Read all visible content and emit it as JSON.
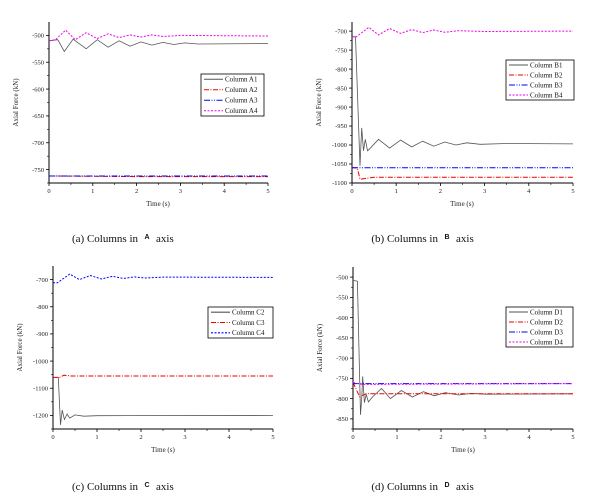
{
  "chart_data": [
    {
      "type": "line",
      "caption": "(a) Columns in",
      "caption_axis_symbol": "A",
      "caption_suffix": "axis",
      "xlabel": "Time (s)",
      "ylabel": "Axial Force (kN)",
      "xlim": [
        0,
        5
      ],
      "ylim": [
        -775,
        -475
      ],
      "xticks": [
        0,
        1,
        2,
        3,
        4,
        5
      ],
      "yticks": [
        -500,
        -550,
        -600,
        -650,
        -700,
        -750
      ],
      "legend_position": "center-right",
      "series": [
        {
          "name": "Column A1",
          "color": "#555555",
          "dash": "solid",
          "points": [
            [
              0,
              -510
            ],
            [
              0.2,
              -508
            ],
            [
              0.35,
              -530
            ],
            [
              0.55,
              -507
            ],
            [
              0.85,
              -525
            ],
            [
              1.1,
              -508
            ],
            [
              1.35,
              -522
            ],
            [
              1.6,
              -510
            ],
            [
              1.85,
              -520
            ],
            [
              2.1,
              -512
            ],
            [
              2.35,
              -518
            ],
            [
              2.6,
              -513
            ],
            [
              2.85,
              -517
            ],
            [
              3.1,
              -514
            ],
            [
              3.4,
              -516
            ],
            [
              5,
              -515
            ]
          ]
        },
        {
          "name": "Column A2",
          "color": "#ee0000",
          "dash": "dashdot",
          "points": [
            [
              0,
              -762
            ],
            [
              2,
              -763
            ],
            [
              5,
              -763
            ]
          ]
        },
        {
          "name": "Column A3",
          "color": "#0000ff",
          "dash": "dashdotdot",
          "points": [
            [
              0,
              -762
            ],
            [
              5,
              -762
            ]
          ]
        },
        {
          "name": "Column A4",
          "color": "#ee00ee",
          "dash": "dash",
          "points": [
            [
              0,
              -510
            ],
            [
              0.15,
              -508
            ],
            [
              0.38,
              -490
            ],
            [
              0.6,
              -508
            ],
            [
              0.85,
              -495
            ],
            [
              1.1,
              -506
            ],
            [
              1.35,
              -497
            ],
            [
              1.6,
              -504
            ],
            [
              1.85,
              -499
            ],
            [
              2.1,
              -503
            ],
            [
              2.35,
              -499
            ],
            [
              2.6,
              -502
            ],
            [
              3,
              -500
            ],
            [
              5,
              -501
            ]
          ]
        }
      ]
    },
    {
      "type": "line",
      "caption": "(b) Columns in",
      "caption_axis_symbol": "B",
      "caption_suffix": "axis",
      "xlabel": "Time (s)",
      "ylabel": "Axial Force (kN)",
      "xlim": [
        0,
        5
      ],
      "ylim": [
        -1100,
        -676
      ],
      "xticks": [
        0,
        1,
        2,
        3,
        4,
        5
      ],
      "yticks": [
        -700,
        -750,
        -800,
        -850,
        -900,
        -950,
        -1000,
        -1050,
        -1100
      ],
      "legend_position": "upper-right",
      "series": [
        {
          "name": "Column B1",
          "color": "#555555",
          "dash": "solid",
          "points": [
            [
              0,
              -715
            ],
            [
              0.08,
              -715
            ],
            [
              0.18,
              -1055
            ],
            [
              0.22,
              -955
            ],
            [
              0.26,
              -1015
            ],
            [
              0.3,
              -985
            ],
            [
              0.35,
              -1015
            ],
            [
              0.4,
              -1010
            ],
            [
              0.6,
              -985
            ],
            [
              0.85,
              -1008
            ],
            [
              1.1,
              -987
            ],
            [
              1.35,
              -1005
            ],
            [
              1.6,
              -990
            ],
            [
              1.85,
              -1003
            ],
            [
              2.1,
              -992
            ],
            [
              2.35,
              -1000
            ],
            [
              2.6,
              -994
            ],
            [
              2.9,
              -998
            ],
            [
              3.5,
              -996
            ],
            [
              5,
              -997
            ]
          ]
        },
        {
          "name": "Column B2",
          "color": "#ee0000",
          "dash": "dashdot",
          "points": [
            [
              0,
              -1060
            ],
            [
              0.12,
              -1060
            ],
            [
              0.18,
              -1090
            ],
            [
              0.5,
              -1085
            ],
            [
              5,
              -1085
            ]
          ]
        },
        {
          "name": "Column B3",
          "color": "#0000ff",
          "dash": "dashdotdot",
          "points": [
            [
              0,
              -1060
            ],
            [
              5,
              -1060
            ]
          ]
        },
        {
          "name": "Column B4",
          "color": "#ee00ee",
          "dash": "dash",
          "points": [
            [
              0,
              -715
            ],
            [
              0.1,
              -715
            ],
            [
              0.38,
              -690
            ],
            [
              0.6,
              -710
            ],
            [
              0.85,
              -693
            ],
            [
              1.1,
              -706
            ],
            [
              1.35,
              -696
            ],
            [
              1.6,
              -704
            ],
            [
              1.85,
              -697
            ],
            [
              2.1,
              -703
            ],
            [
              2.4,
              -699
            ],
            [
              3,
              -701
            ],
            [
              5,
              -700
            ]
          ]
        }
      ]
    },
    {
      "type": "line",
      "caption": "(c) Columns in",
      "caption_axis_symbol": "C",
      "caption_suffix": "axis",
      "xlabel": "Time (s)",
      "ylabel": "Axial Force (kN)",
      "xlim": [
        0,
        5
      ],
      "ylim": [
        -1250,
        -650
      ],
      "xticks": [
        0,
        1,
        2,
        3,
        4,
        5
      ],
      "yticks": [
        -700,
        -800,
        -900,
        -1000,
        -1100,
        -1200
      ],
      "legend_position": "upper-right",
      "series": [
        {
          "name": "Column C2",
          "color": "#555555",
          "dash": "solid",
          "points": [
            [
              0,
              -1060
            ],
            [
              0.12,
              -1060
            ],
            [
              0.17,
              -1235
            ],
            [
              0.21,
              -1180
            ],
            [
              0.26,
              -1215
            ],
            [
              0.32,
              -1195
            ],
            [
              0.38,
              -1210
            ],
            [
              0.5,
              -1198
            ],
            [
              0.7,
              -1203
            ],
            [
              1,
              -1201
            ],
            [
              5,
              -1200
            ]
          ]
        },
        {
          "name": "Column C3",
          "color": "#ee0000",
          "dash": "dashdot",
          "points": [
            [
              0,
              -1060
            ],
            [
              0.15,
              -1060
            ],
            [
              0.25,
              -1052
            ],
            [
              0.4,
              -1055
            ],
            [
              5,
              -1055
            ]
          ]
        },
        {
          "name": "Column C4",
          "color": "#0000ff",
          "dash": "dash",
          "points": [
            [
              0,
              -712
            ],
            [
              0.1,
              -712
            ],
            [
              0.38,
              -680
            ],
            [
              0.6,
              -700
            ],
            [
              0.85,
              -685
            ],
            [
              1.1,
              -698
            ],
            [
              1.35,
              -688
            ],
            [
              1.6,
              -696
            ],
            [
              1.85,
              -690
            ],
            [
              2.1,
              -694
            ],
            [
              2.5,
              -691
            ],
            [
              5,
              -692
            ]
          ]
        }
      ]
    },
    {
      "type": "line",
      "caption": "(d) Columns in",
      "caption_axis_symbol": "D",
      "caption_suffix": "axis",
      "xlabel": "Time (s)",
      "ylabel": "Axial Force (kN)",
      "xlim": [
        0,
        5
      ],
      "ylim": [
        -875,
        -475
      ],
      "xticks": [
        0,
        1,
        2,
        3,
        4,
        5
      ],
      "yticks": [
        -500,
        -550,
        -600,
        -650,
        -700,
        -750,
        -800,
        -850
      ],
      "legend_position": "upper-right",
      "series": [
        {
          "name": "Column D1",
          "color": "#555555",
          "dash": "solid",
          "points": [
            [
              0,
              -508
            ],
            [
              0.1,
              -510
            ],
            [
              0.17,
              -840
            ],
            [
              0.2,
              -795
            ],
            [
              0.22,
              -745
            ],
            [
              0.26,
              -810
            ],
            [
              0.3,
              -790
            ],
            [
              0.35,
              -808
            ],
            [
              0.45,
              -795
            ],
            [
              0.65,
              -775
            ],
            [
              0.85,
              -800
            ],
            [
              1.1,
              -780
            ],
            [
              1.35,
              -796
            ],
            [
              1.6,
              -783
            ],
            [
              1.85,
              -793
            ],
            [
              2.1,
              -785
            ],
            [
              2.4,
              -791
            ],
            [
              2.7,
              -787
            ],
            [
              3,
              -789
            ],
            [
              5,
              -788
            ]
          ]
        },
        {
          "name": "Column D2",
          "color": "#ee0000",
          "dash": "dashdot",
          "points": [
            [
              0,
              -760
            ],
            [
              0.15,
              -795
            ],
            [
              0.3,
              -788
            ],
            [
              5,
              -788
            ]
          ]
        },
        {
          "name": "Column D3",
          "color": "#0000ff",
          "dash": "dashdotdot",
          "points": [
            [
              0,
              -763
            ],
            [
              5,
              -763
            ]
          ]
        },
        {
          "name": "Column D4",
          "color": "#ee00ee",
          "dash": "dash",
          "points": [
            [
              0,
              -760
            ],
            [
              0.2,
              -765
            ],
            [
              5,
              -763
            ]
          ]
        }
      ]
    }
  ]
}
